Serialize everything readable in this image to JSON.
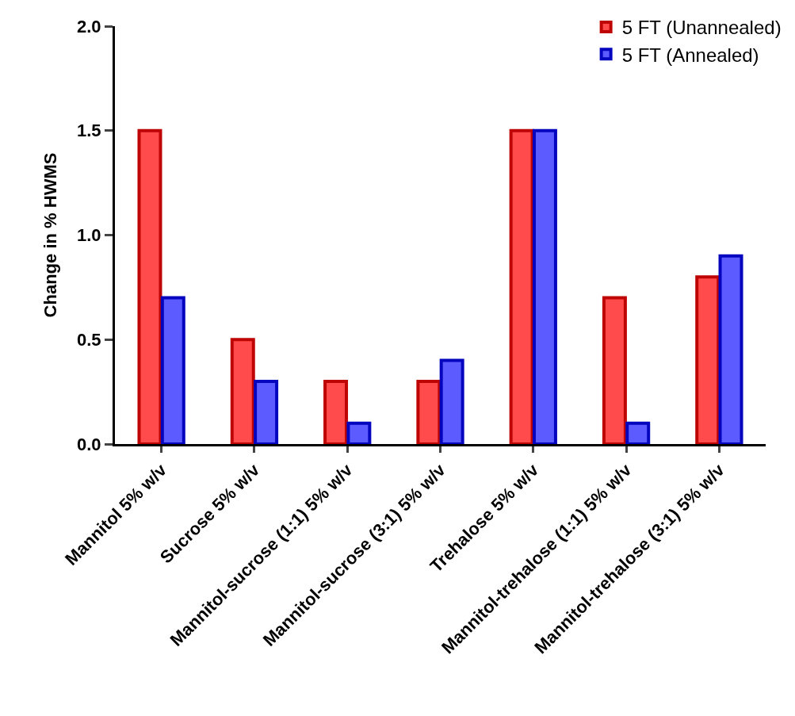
{
  "chart_data": {
    "type": "bar",
    "ylabel": "Change in % HWMS",
    "categories": [
      "Mannitol 5% w/v",
      "Sucrose 5% w/v",
      "Mannitol-sucrose (1:1) 5% w/v",
      "Mannitol-sucrose (3:1) 5% w/v",
      "Trehalose 5% w/v",
      "Mannitol-trehalose (1:1) 5% w/v",
      "Mannitol-trehalose (3:1) 5% w/v"
    ],
    "series": [
      {
        "name": "5 FT (Unannealed)",
        "color": "#ff4b4b",
        "values": [
          1.5,
          0.5,
          0.3,
          0.3,
          1.5,
          0.7,
          0.8
        ]
      },
      {
        "name": "5 FT (Annealed)",
        "color": "#5b5bff",
        "values": [
          0.7,
          0.3,
          0.1,
          0.4,
          1.5,
          0.1,
          0.9
        ]
      }
    ],
    "ylim": [
      0,
      2.0
    ],
    "yticks": [
      {
        "value": 0,
        "label": "0.0"
      },
      {
        "value": 0.5,
        "label": "0.5"
      },
      {
        "value": 1,
        "label": "1.0"
      },
      {
        "value": 1.5,
        "label": "1.5"
      },
      {
        "value": 2,
        "label": "2.0"
      }
    ],
    "grid": false,
    "legend": "top right"
  }
}
